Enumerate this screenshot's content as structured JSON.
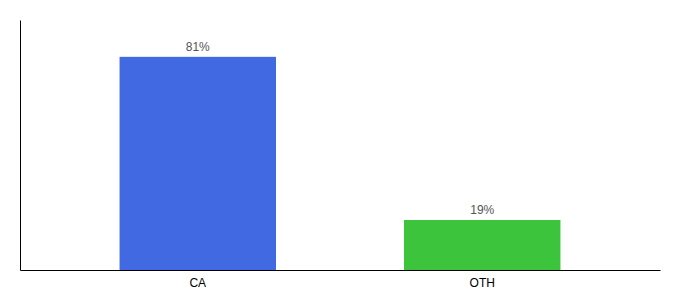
{
  "chart_data": {
    "type": "bar",
    "categories": [
      "CA",
      "OTH"
    ],
    "values": [
      81,
      19
    ],
    "value_labels": [
      "81%",
      "19%"
    ],
    "colors": [
      "#4169e1",
      "#3cc43c"
    ],
    "ylim": [
      0,
      95
    ],
    "data_labels": true,
    "tick_labels": "x",
    "grid": false
  }
}
